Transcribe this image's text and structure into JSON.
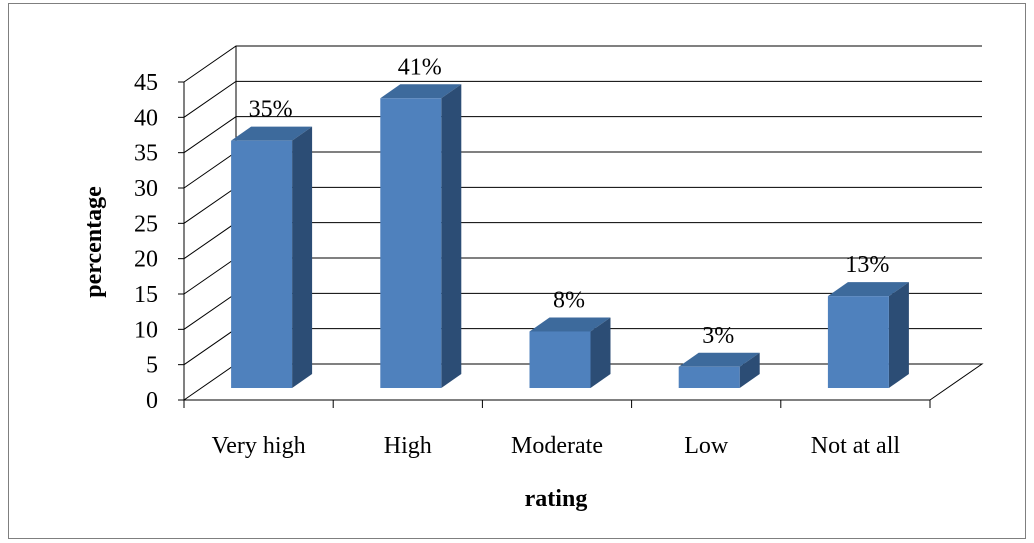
{
  "chart_data": {
    "type": "bar",
    "categories": [
      "Very high",
      "High",
      "Moderate",
      "Low",
      "Not at all"
    ],
    "values": [
      35,
      41,
      8,
      3,
      13
    ],
    "data_labels": [
      "35%",
      "41%",
      "8%",
      "3%",
      "13%"
    ],
    "xlabel": "rating",
    "ylabel": "percentage",
    "ylim": [
      0,
      45
    ],
    "yticks": [
      "0",
      "5",
      "10",
      "15",
      "20",
      "25",
      "30",
      "35",
      "40",
      "45"
    ],
    "grid": true,
    "legend": "none",
    "style": "3d-column",
    "colors": {
      "bar_front": "#4f81bd",
      "bar_side": "#2c4d75",
      "bar_top": "#3d6a9c",
      "grid": "#000000"
    }
  }
}
